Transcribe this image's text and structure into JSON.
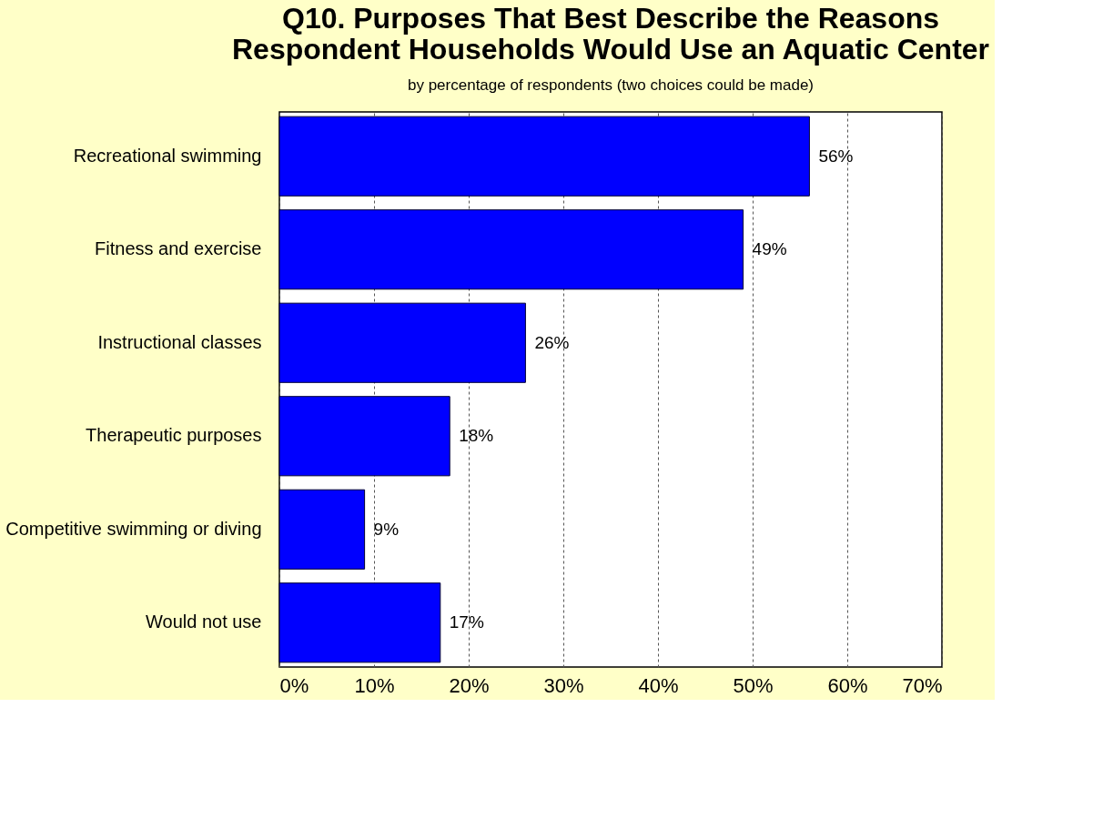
{
  "chart_data": {
    "type": "bar",
    "orientation": "horizontal",
    "title": "Q10. Purposes That Best Describe the Reasons\nRespondent Households Would Use an Aquatic Center",
    "subtitle": "by percentage of respondents (two choices could be made)",
    "categories": [
      "Recreational swimming",
      "Fitness and exercise",
      "Instructional classes",
      "Therapeutic purposes",
      "Competitive swimming or diving",
      "Would not use"
    ],
    "values": [
      56,
      49,
      26,
      18,
      9,
      17
    ],
    "value_labels": [
      "56%",
      "49%",
      "26%",
      "18%",
      "9%",
      "17%"
    ],
    "color": "#0000ff",
    "xlim": [
      0,
      70
    ],
    "xticks": [
      {
        "value": 0,
        "label": "0%"
      },
      {
        "value": 10,
        "label": "10%"
      },
      {
        "value": 20,
        "label": "20%"
      },
      {
        "value": 30,
        "label": "30%"
      },
      {
        "value": 40,
        "label": "40%"
      },
      {
        "value": 50,
        "label": "50%"
      },
      {
        "value": 60,
        "label": "60%"
      },
      {
        "value": 70,
        "label": "70%"
      }
    ],
    "grid": "x"
  }
}
